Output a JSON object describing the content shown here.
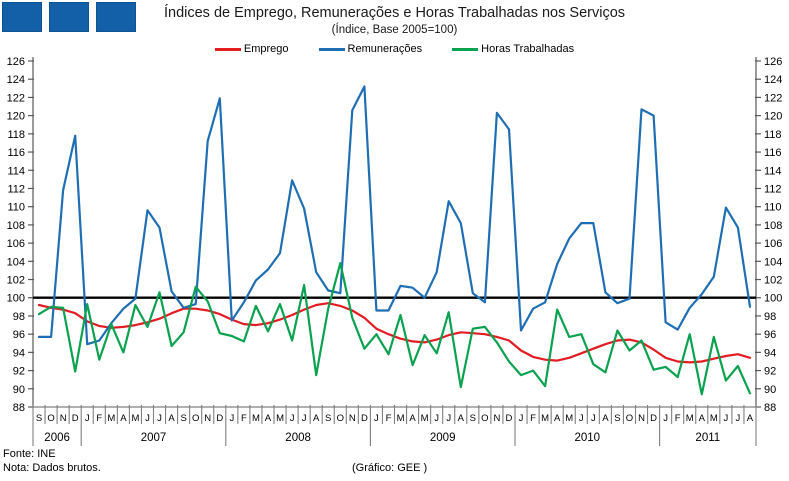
{
  "logo": {
    "color": "#1360a8",
    "square_count": 3
  },
  "header": {
    "title": "Índices de Emprego, Remunerações e Horas Trabalhadas nos Serviços",
    "subtitle": "(Índice, Base 2005=100)"
  },
  "footer": {
    "source": "Fonte: INE",
    "note": "Nota: Dados brutos.",
    "credit": "(Gráfico: GEE )"
  },
  "chart_data": {
    "type": "line",
    "title": "Índices de Emprego, Remunerações e Horas Trabalhadas nos Serviços",
    "subtitle": "(Índice, Base 2005=100)",
    "ylim": [
      88,
      126
    ],
    "ytick_step": 2,
    "ytick_labels": [
      "88",
      "90",
      "92",
      "94",
      "96",
      "98",
      "100",
      "102",
      "104",
      "106",
      "108",
      "110",
      "112",
      "114",
      "116",
      "118",
      "120",
      "122",
      "124",
      "126"
    ],
    "baseline": 100,
    "grid": false,
    "legend_position": "top-center",
    "x_labels": [
      "S",
      "O",
      "N",
      "D",
      "J",
      "F",
      "M",
      "A",
      "M",
      "J",
      "J",
      "A",
      "S",
      "O",
      "N",
      "D",
      "J",
      "F",
      "M",
      "A",
      "M",
      "J",
      "J",
      "A",
      "S",
      "O",
      "N",
      "D",
      "J",
      "F",
      "M",
      "A",
      "M",
      "J",
      "J",
      "A",
      "S",
      "O",
      "N",
      "D",
      "J",
      "F",
      "M",
      "A",
      "M",
      "J",
      "J",
      "A",
      "S",
      "O",
      "N",
      "D",
      "J",
      "F",
      "M",
      "A",
      "M",
      "J",
      "J",
      "A"
    ],
    "year_groups": [
      {
        "label": "2006",
        "count": 4
      },
      {
        "label": "2007",
        "count": 12
      },
      {
        "label": "2008",
        "count": 12
      },
      {
        "label": "2009",
        "count": 12
      },
      {
        "label": "2010",
        "count": 12
      },
      {
        "label": "2011",
        "count": 8
      }
    ],
    "series": [
      {
        "name": "Emprego",
        "color": "#e31b23",
        "values": [
          99.2,
          98.9,
          98.7,
          98.3,
          97.4,
          96.9,
          96.7,
          96.8,
          97.0,
          97.3,
          97.7,
          98.3,
          98.8,
          98.8,
          98.6,
          98.2,
          97.6,
          97.1,
          97.0,
          97.2,
          97.6,
          98.1,
          98.7,
          99.2,
          99.4,
          99.1,
          98.6,
          97.8,
          96.6,
          96.0,
          95.5,
          95.2,
          95.1,
          95.4,
          95.9,
          96.2,
          96.1,
          96.0,
          95.7,
          95.3,
          94.2,
          93.5,
          93.2,
          93.1,
          93.4,
          93.9,
          94.4,
          94.9,
          95.3,
          95.4,
          95.1,
          94.3,
          93.4,
          93.0,
          92.9,
          93.0,
          93.3,
          93.6,
          93.8,
          93.4
        ]
      },
      {
        "name": "Remunerações",
        "color": "#1f6eb4",
        "values": [
          95.7,
          95.7,
          111.8,
          117.8,
          94.9,
          95.3,
          97.2,
          98.8,
          99.9,
          109.6,
          107.7,
          100.7,
          98.9,
          99.3,
          117.2,
          121.9,
          97.5,
          99.5,
          101.9,
          103.1,
          104.9,
          112.9,
          109.8,
          102.8,
          100.8,
          100.5,
          120.6,
          123.2,
          98.6,
          98.6,
          101.3,
          101.1,
          100.0,
          102.8,
          110.6,
          108.2,
          100.5,
          99.5,
          120.3,
          118.5,
          96.4,
          98.8,
          99.5,
          103.7,
          106.5,
          108.2,
          108.2,
          100.6,
          99.4,
          99.9,
          120.7,
          120.0,
          97.3,
          96.5,
          98.9,
          100.4,
          102.3,
          109.9,
          107.7,
          99.0
        ]
      },
      {
        "name": "Horas Trabalhadas",
        "color": "#0aa14f",
        "values": [
          98.2,
          99.0,
          98.9,
          91.9,
          99.3,
          93.2,
          97.1,
          94.0,
          99.2,
          96.8,
          100.6,
          94.7,
          96.2,
          101.2,
          99.6,
          96.1,
          95.8,
          95.2,
          99.1,
          96.3,
          99.3,
          95.3,
          101.4,
          91.5,
          98.8,
          103.8,
          97.8,
          94.4,
          96.0,
          93.8,
          98.1,
          92.6,
          95.9,
          93.9,
          98.4,
          90.2,
          96.6,
          96.8,
          95.1,
          93.0,
          91.5,
          92.0,
          90.3,
          98.7,
          95.7,
          96.0,
          92.7,
          91.8,
          96.4,
          94.2,
          95.3,
          92.1,
          92.4,
          91.3,
          96.0,
          89.4,
          95.7,
          90.9,
          92.5,
          89.5
        ]
      }
    ]
  }
}
